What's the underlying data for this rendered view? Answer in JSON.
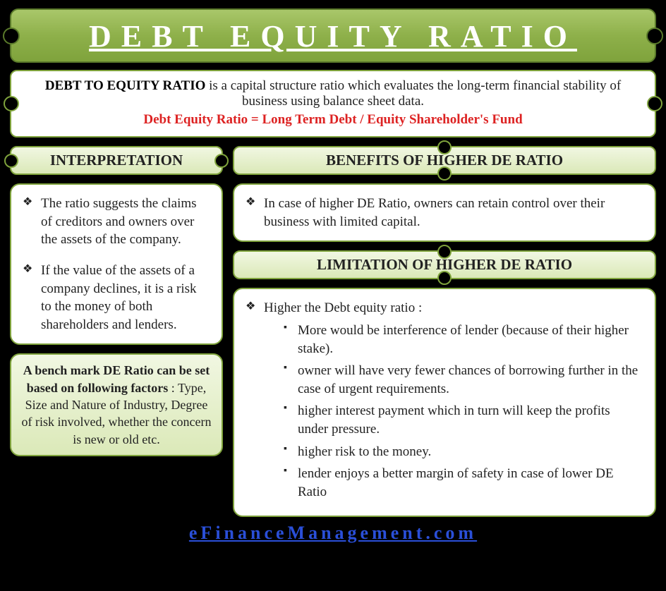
{
  "theme": {
    "background": "#000000",
    "panel_bg": "#ffffff",
    "header_gradient_top": "#a9c76a",
    "header_gradient_bottom": "#7fa33c",
    "section_gradient_top": "#f1f7e2",
    "section_gradient_bottom": "#dbe9b8",
    "border_color": "#7fa33c",
    "title_color": "#ffffff",
    "text_color": "#222222",
    "formula_color": "#d22",
    "link_color": "#2a4fd8",
    "font_family": "Garamond, Georgia, serif",
    "title_fontsize": 44,
    "section_header_fontsize": 21,
    "body_fontsize": 19,
    "footer_fontsize": 26
  },
  "title": "DEBT EQUITY RATIO",
  "intro": {
    "lead": "DEBT TO EQUITY RATIO",
    "text": " is a capital structure ratio which evaluates the long-term financial stability of business using balance sheet data.",
    "formula": "Debt Equity Ratio = Long Term Debt / Equity Shareholder's Fund"
  },
  "interpretation": {
    "heading": "INTERPRETATION",
    "points": [
      "The ratio suggests the claims of creditors and owners over the assets of the company.",
      "If the value of the assets of a company declines, it is a risk to the money of both shareholders and lenders."
    ]
  },
  "benchmark": {
    "bold": "A bench mark DE Ratio can be set based on following factors",
    "rest": " : Type, Size and Nature of Industry, Degree of risk involved, whether the concern is new or old etc."
  },
  "benefits": {
    "heading": "BENEFITS OF HIGHER DE RATIO",
    "points": [
      "In case of higher DE Ratio, owners can retain control over their business with limited capital."
    ]
  },
  "limitation": {
    "heading": "LIMITATION OF HIGHER DE RATIO",
    "intro": "Higher the Debt equity ratio :",
    "points": [
      "More would be interference of lender (because of their higher stake).",
      "owner will have very fewer chances of borrowing further in the case of urgent requirements.",
      "higher interest payment which in turn will keep the profits under pressure.",
      "higher risk to the money.",
      "lender enjoys a better margin of safety in case of lower DE Ratio"
    ]
  },
  "footer": "eFinanceManagement.com"
}
